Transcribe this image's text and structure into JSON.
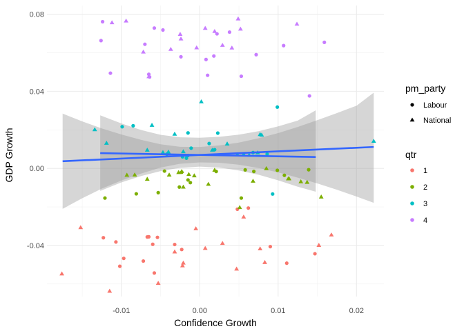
{
  "chart_data": {
    "type": "scatter",
    "xlabel": "Confidence Growth",
    "ylabel": "GDP Growth",
    "xlim": [
      -0.0195,
      0.0235
    ],
    "ylim": [
      -0.0665,
      0.0845
    ],
    "x_ticks": [
      -0.01,
      0.0,
      0.01,
      0.02
    ],
    "x_tick_labels": [
      "-0.01",
      "0.00",
      "0.01",
      "0.02"
    ],
    "y_ticks": [
      -0.04,
      0.0,
      0.04,
      0.08
    ],
    "y_tick_labels": [
      "-0.04",
      "0.00",
      "0.04",
      "0.08"
    ],
    "grid": true,
    "legend_position": "right",
    "shape_legend": {
      "title": "pm_party",
      "items": [
        {
          "label": "Labour",
          "shape": "circle"
        },
        {
          "label": "National",
          "shape": "triangle"
        }
      ]
    },
    "color_legend": {
      "title": "qtr",
      "items": [
        {
          "label": "1",
          "color": "#F8766D"
        },
        {
          "label": "2",
          "color": "#7CAE00"
        },
        {
          "label": "3",
          "color": "#00BFC4"
        },
        {
          "label": "4",
          "color": "#C77CFF"
        }
      ]
    },
    "smooth_color": "#3366FF",
    "band_color": "#999999",
    "smooths": [
      {
        "group": "National",
        "x": [
          -0.0175,
          0.0222
        ],
        "y": [
          0.0037,
          0.0111
        ],
        "ribbon_x": [
          -0.0175,
          -0.015,
          -0.0125,
          -0.01,
          -0.0075,
          -0.005,
          -0.0025,
          0.0,
          0.0025,
          0.005,
          0.0075,
          0.01,
          0.0125,
          0.015,
          0.0175,
          0.02,
          0.0222
        ],
        "ribbon_ymin": [
          -0.021,
          -0.0155,
          -0.0105,
          -0.0063,
          -0.0027,
          0.0004,
          0.0024,
          0.0031,
          0.0029,
          0.0019,
          0.0002,
          -0.0021,
          -0.0048,
          -0.0078,
          -0.0111,
          -0.0146,
          -0.0179
        ],
        "ribbon_ymax": [
          0.0284,
          0.0244,
          0.0207,
          0.0176,
          0.0148,
          0.0125,
          0.0112,
          0.0111,
          0.0119,
          0.0134,
          0.0156,
          0.0183,
          0.0215,
          0.025,
          0.0287,
          0.0325,
          0.0393
        ]
      },
      {
        "group": "Labour",
        "x": [
          -0.0127,
          0.0148
        ],
        "y": [
          0.0079,
          0.0059
        ],
        "ribbon_x": [
          -0.0127,
          -0.01,
          -0.0075,
          -0.005,
          -0.0025,
          0.0,
          0.0025,
          0.005,
          0.0075,
          0.01,
          0.0125,
          0.0148
        ],
        "ribbon_ymin": [
          -0.0117,
          -0.0073,
          -0.004,
          -0.0014,
          0.0003,
          0.0009,
          0.0004,
          -0.0011,
          -0.0033,
          -0.0062,
          -0.0095,
          -0.0121
        ],
        "ribbon_ymax": [
          0.0275,
          0.0233,
          0.0199,
          0.0174,
          0.0161,
          0.0159,
          0.0164,
          0.0175,
          0.0193,
          0.0218,
          0.0248,
          0.0301
        ]
      }
    ],
    "series": [
      {
        "qtr": "1",
        "pm_party": "Labour",
        "x": [
          -0.0123,
          -0.0107,
          -0.0102,
          -0.0097,
          -0.0072,
          -0.0067,
          -0.0065,
          -0.006,
          -0.0058,
          -0.0054,
          -0.0032,
          -0.0023,
          0.0048,
          0.0062,
          0.009,
          0.0111,
          0.0147
        ],
        "y": [
          -0.036,
          -0.0382,
          -0.0508,
          -0.0467,
          -0.0481,
          -0.0356,
          -0.0355,
          -0.0394,
          -0.0543,
          -0.0358,
          -0.0395,
          -0.0421,
          -0.0212,
          -0.0206,
          -0.0406,
          -0.0492,
          -0.0443
        ]
      },
      {
        "qtr": "1",
        "pm_party": "National",
        "x": [
          -0.0176,
          -0.0152,
          -0.0115,
          -0.0053,
          -0.0032,
          -0.0022,
          -0.0021,
          -0.0005,
          0.0007,
          0.0029,
          0.0047,
          0.0056,
          0.0077,
          0.0083,
          0.0152,
          0.0168
        ],
        "y": [
          -0.0547,
          -0.0307,
          -0.0637,
          -0.0596,
          -0.0433,
          -0.0505,
          -0.0491,
          -0.0313,
          -0.0415,
          -0.0389,
          -0.0522,
          -0.0252,
          -0.0417,
          -0.0488,
          -0.0399,
          -0.0345
        ]
      },
      {
        "qtr": "2",
        "pm_party": "Labour",
        "x": [
          -0.0121,
          -0.0081,
          -0.0053,
          -0.0045,
          -0.0026,
          -0.0023,
          -0.0015,
          -0.0012,
          0.0021,
          0.0053,
          0.0058,
          0.0069,
          0.0099,
          0.0108,
          0.0139
        ],
        "y": [
          -0.0154,
          -0.0132,
          -0.0126,
          -0.0014,
          -0.0097,
          -0.002,
          -0.006,
          -0.0074,
          -0.0016,
          -0.0154,
          -0.0008,
          -0.0016,
          -0.001,
          -0.0036,
          -0.0007
        ]
      },
      {
        "qtr": "2",
        "pm_party": "National",
        "x": [
          -0.0093,
          -0.0083,
          -0.0067,
          -0.0039,
          -0.0027,
          -0.0023,
          -0.0021,
          -0.0014,
          -0.0007,
          0.0011,
          0.0019,
          0.0051,
          0.0068,
          0.0085,
          0.0113,
          0.0114,
          0.0129,
          0.0137,
          0.0155
        ],
        "y": [
          -0.0035,
          -0.0034,
          -0.0056,
          -0.0034,
          -0.0021,
          -0.0016,
          -0.0097,
          -0.0031,
          -0.0038,
          -0.0082,
          -0.0009,
          -0.0203,
          -0.0066,
          -0.0001,
          -0.0054,
          -0.0054,
          -0.0069,
          -0.0072,
          -0.0148
        ]
      },
      {
        "qtr": "3",
        "pm_party": "Labour",
        "x": [
          -0.0099,
          -0.0085,
          -0.0042,
          -0.0022,
          -0.0017,
          -0.0015,
          -0.0015,
          -0.0011,
          0.0012,
          0.0019,
          0.0023,
          0.0068,
          0.0086,
          0.0093,
          0.0099
        ],
        "y": [
          0.0216,
          0.0221,
          0.0074,
          0.006,
          0.0053,
          0.0184,
          0.0067,
          0.0105,
          0.0129,
          0.0097,
          0.0183,
          0.0082,
          0.0074,
          -0.0133,
          0.0318
        ]
      },
      {
        "qtr": "3",
        "pm_party": "National",
        "x": [
          -0.0134,
          -0.0119,
          -0.0067,
          -0.0061,
          -0.0047,
          -0.004,
          -0.0032,
          -0.0021,
          0.0002,
          0.0016,
          0.0035,
          0.0048,
          0.0056,
          0.0063,
          0.0074,
          0.0077,
          0.0079,
          0.0222
        ],
        "y": [
          0.0201,
          0.0131,
          0.0095,
          0.0224,
          0.0083,
          0.0085,
          0.0178,
          0.0087,
          0.0346,
          0.0095,
          0.0127,
          0.0072,
          0.0073,
          0.0069,
          0.0081,
          0.0176,
          0.0173,
          0.0141
        ]
      },
      {
        "qtr": "4",
        "pm_party": "Labour",
        "x": [
          -0.0126,
          -0.0124,
          -0.0114,
          -0.007,
          -0.0065,
          -0.0064,
          -0.0058,
          -0.0047,
          -0.0024,
          0.0008,
          0.001,
          0.0018,
          0.0022,
          0.0038,
          0.0053,
          0.0072,
          0.0107,
          0.014,
          0.0159
        ],
        "y": [
          0.0663,
          0.0761,
          0.0494,
          0.0644,
          0.0488,
          0.0474,
          0.0728,
          0.0718,
          0.0579,
          0.0565,
          0.0483,
          0.0583,
          0.0698,
          0.0707,
          0.0478,
          0.059,
          0.0637,
          0.0376,
          0.0654
        ]
      },
      {
        "qtr": "4",
        "pm_party": "National",
        "x": [
          -0.0112,
          -0.0094,
          -0.0072,
          -0.0065,
          -0.0037,
          -0.0025,
          -0.0024,
          -0.0004,
          0.0007,
          0.0019,
          0.0029,
          0.0041,
          0.0049,
          0.0052,
          0.0124
        ],
        "y": [
          0.0756,
          0.0765,
          0.0604,
          0.0476,
          0.0618,
          0.0696,
          0.0672,
          0.0626,
          0.0727,
          0.0711,
          0.0639,
          0.0625,
          0.0776,
          0.0723,
          0.0749
        ]
      }
    ]
  }
}
